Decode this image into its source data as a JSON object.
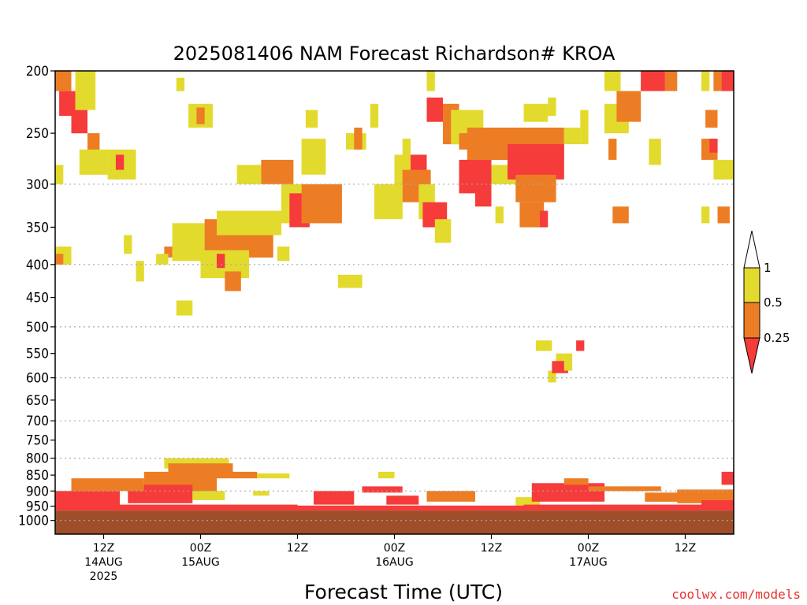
{
  "colors": {
    "ri_lt_025": "#f63b3b",
    "ri_025_05": "#ec7d24",
    "ri_05_1": "#e3da2e",
    "ground": "#9e4f2a",
    "gridline": "#aaaaaa"
  },
  "chart_data": {
    "type": "heatmap",
    "title": "2025081406 NAM Forecast Richardson# KROA",
    "xlabel": "Forecast Time (UTC)",
    "ylabel": "",
    "credit": "coolwx.com/models",
    "y_scale": "log-pressure (reversed)",
    "y_range": [
      1050,
      200
    ],
    "y_ticks": [
      "200",
      "250",
      "300",
      "350",
      "400",
      "450",
      "500",
      "550",
      "600",
      "650",
      "700",
      "750",
      "800",
      "850",
      "900",
      "950",
      "1000"
    ],
    "grid_lines_hPa": [
      300,
      400,
      500,
      600,
      700,
      800,
      900,
      1000
    ],
    "x_range_hours": [
      0,
      84
    ],
    "x_ticks": [
      {
        "hour": 6,
        "lines": [
          "12Z",
          "14AUG",
          "2025"
        ]
      },
      {
        "hour": 18,
        "lines": [
          "00Z",
          "15AUG"
        ]
      },
      {
        "hour": 30,
        "lines": [
          "12Z"
        ]
      },
      {
        "hour": 42,
        "lines": [
          "00Z",
          "16AUG"
        ]
      },
      {
        "hour": 54,
        "lines": [
          "12Z"
        ]
      },
      {
        "hour": 66,
        "lines": [
          "00Z",
          "17AUG"
        ]
      },
      {
        "hour": 78,
        "lines": [
          "12Z"
        ]
      }
    ],
    "colorbar": {
      "labels": [
        "1",
        "0.5",
        "0.25"
      ],
      "bins": [
        {
          "range": "0.5-1",
          "color": "#e3da2e"
        },
        {
          "range": "0.25-0.5",
          "color": "#ec7d24"
        },
        {
          "range": "<0.25",
          "color": "#f63b3b"
        }
      ]
    },
    "ground_level_hPa": 965,
    "cells": [
      {
        "t": [
          0,
          2
        ],
        "p": [
          200,
          215
        ],
        "c": 2
      },
      {
        "t": [
          0.5,
          2.5
        ],
        "p": [
          215,
          235
        ],
        "c": 3
      },
      {
        "t": [
          2,
          4
        ],
        "p": [
          230,
          250
        ],
        "c": 3
      },
      {
        "t": [
          2.5,
          5
        ],
        "p": [
          200,
          230
        ],
        "c": 1
      },
      {
        "t": [
          4,
          5.5
        ],
        "p": [
          250,
          270
        ],
        "c": 2
      },
      {
        "t": [
          3,
          6.5
        ],
        "p": [
          265,
          290
        ],
        "c": 1
      },
      {
        "t": [
          6.5,
          10
        ],
        "p": [
          265,
          295
        ],
        "c": 1
      },
      {
        "t": [
          7.5,
          8.5
        ],
        "p": [
          270,
          285
        ],
        "c": 3
      },
      {
        "t": [
          0,
          1
        ],
        "p": [
          280,
          300
        ],
        "c": 1
      },
      {
        "t": [
          0,
          2
        ],
        "p": [
          375,
          400
        ],
        "c": 1
      },
      {
        "t": [
          0,
          1
        ],
        "p": [
          385,
          400
        ],
        "c": 2
      },
      {
        "t": [
          13.5,
          14.5
        ],
        "p": [
          375,
          390
        ],
        "c": 2
      },
      {
        "t": [
          14.5,
          18.5
        ],
        "p": [
          345,
          395
        ],
        "c": 1
      },
      {
        "t": [
          18.5,
          27
        ],
        "p": [
          340,
          390
        ],
        "c": 2
      },
      {
        "t": [
          20,
          28
        ],
        "p": [
          330,
          360
        ],
        "c": 1
      },
      {
        "t": [
          18,
          24
        ],
        "p": [
          380,
          420
        ],
        "c": 1
      },
      {
        "t": [
          20,
          21
        ],
        "p": [
          385,
          405
        ],
        "c": 3
      },
      {
        "t": [
          21,
          23
        ],
        "p": [
          410,
          440
        ],
        "c": 2
      },
      {
        "t": [
          15,
          17
        ],
        "p": [
          455,
          480
        ],
        "c": 1
      },
      {
        "t": [
          8.5,
          9.5
        ],
        "p": [
          360,
          385
        ],
        "c": 1
      },
      {
        "t": [
          10,
          11
        ],
        "p": [
          395,
          425
        ],
        "c": 1
      },
      {
        "t": [
          12.5,
          14
        ],
        "p": [
          385,
          400
        ],
        "c": 1
      },
      {
        "t": [
          15,
          16
        ],
        "p": [
          205,
          215
        ],
        "c": 1
      },
      {
        "t": [
          16.5,
          19.5
        ],
        "p": [
          225,
          245
        ],
        "c": 1
      },
      {
        "t": [
          17.5,
          18.5
        ],
        "p": [
          228,
          242
        ],
        "c": 2
      },
      {
        "t": [
          22.5,
          25.5
        ],
        "p": [
          280,
          300
        ],
        "c": 1
      },
      {
        "t": [
          25.5,
          29.5
        ],
        "p": [
          275,
          300
        ],
        "c": 2
      },
      {
        "t": [
          27.5,
          29
        ],
        "p": [
          375,
          395
        ],
        "c": 1
      },
      {
        "t": [
          28,
          30.5
        ],
        "p": [
          300,
          345
        ],
        "c": 1
      },
      {
        "t": [
          29,
          31.5
        ],
        "p": [
          310,
          350
        ],
        "c": 3
      },
      {
        "t": [
          30.5,
          35.5
        ],
        "p": [
          300,
          345
        ],
        "c": 2
      },
      {
        "t": [
          30.5,
          33.5
        ],
        "p": [
          255,
          290
        ],
        "c": 1
      },
      {
        "t": [
          35,
          38
        ],
        "p": [
          415,
          435
        ],
        "c": 1
      },
      {
        "t": [
          31,
          32.5
        ],
        "p": [
          230,
          245
        ],
        "c": 1
      },
      {
        "t": [
          36,
          38.5
        ],
        "p": [
          250,
          265
        ],
        "c": 1
      },
      {
        "t": [
          37,
          38
        ],
        "p": [
          245,
          265
        ],
        "c": 2
      },
      {
        "t": [
          39,
          40
        ],
        "p": [
          225,
          245
        ],
        "c": 1
      },
      {
        "t": [
          42,
          43
        ],
        "p": [
          280,
          300
        ],
        "c": 2
      },
      {
        "t": [
          43,
          44
        ],
        "p": [
          255,
          275
        ],
        "c": 1
      },
      {
        "t": [
          39.5,
          43
        ],
        "p": [
          300,
          340
        ],
        "c": 1
      },
      {
        "t": [
          42,
          45
        ],
        "p": [
          270,
          300
        ],
        "c": 1
      },
      {
        "t": [
          44,
          46
        ],
        "p": [
          270,
          290
        ],
        "c": 3
      },
      {
        "t": [
          43,
          46.5
        ],
        "p": [
          285,
          320
        ],
        "c": 2
      },
      {
        "t": [
          45,
          47
        ],
        "p": [
          300,
          340
        ],
        "c": 1
      },
      {
        "t": [
          45.5,
          48.5
        ],
        "p": [
          320,
          350
        ],
        "c": 3
      },
      {
        "t": [
          47,
          49
        ],
        "p": [
          340,
          370
        ],
        "c": 1
      },
      {
        "t": [
          46,
          48
        ],
        "p": [
          220,
          240
        ],
        "c": 3
      },
      {
        "t": [
          48,
          50
        ],
        "p": [
          225,
          260
        ],
        "c": 2
      },
      {
        "t": [
          46,
          47
        ],
        "p": [
          200,
          215
        ],
        "c": 1
      },
      {
        "t": [
          49,
          53
        ],
        "p": [
          230,
          260
        ],
        "c": 1
      },
      {
        "t": [
          50,
          58
        ],
        "p": [
          250,
          265
        ],
        "c": 2
      },
      {
        "t": [
          51,
          63
        ],
        "p": [
          245,
          275
        ],
        "c": 2
      },
      {
        "t": [
          50,
          54
        ],
        "p": [
          275,
          310
        ],
        "c": 3
      },
      {
        "t": [
          54,
          57
        ],
        "p": [
          280,
          300
        ],
        "c": 1
      },
      {
        "t": [
          56,
          63
        ],
        "p": [
          260,
          295
        ],
        "c": 3
      },
      {
        "t": [
          57,
          62
        ],
        "p": [
          290,
          320
        ],
        "c": 2
      },
      {
        "t": [
          57.5,
          60.5
        ],
        "p": [
          320,
          350
        ],
        "c": 2
      },
      {
        "t": [
          60,
          61
        ],
        "p": [
          330,
          350
        ],
        "c": 3
      },
      {
        "t": [
          52,
          54
        ],
        "p": [
          300,
          325
        ],
        "c": 3
      },
      {
        "t": [
          54.5,
          55.5
        ],
        "p": [
          325,
          345
        ],
        "c": 1
      },
      {
        "t": [
          58,
          61
        ],
        "p": [
          225,
          240
        ],
        "c": 1
      },
      {
        "t": [
          61,
          62
        ],
        "p": [
          220,
          235
        ],
        "c": 1
      },
      {
        "t": [
          63,
          65
        ],
        "p": [
          245,
          260
        ],
        "c": 1
      },
      {
        "t": [
          65,
          66
        ],
        "p": [
          230,
          260
        ],
        "c": 1
      },
      {
        "t": [
          68,
          71
        ],
        "p": [
          225,
          250
        ],
        "c": 1
      },
      {
        "t": [
          69.5,
          72.5
        ],
        "p": [
          215,
          240
        ],
        "c": 2
      },
      {
        "t": [
          72.5,
          75.5
        ],
        "p": [
          200,
          215
        ],
        "c": 3
      },
      {
        "t": [
          75.5,
          77
        ],
        "p": [
          200,
          215
        ],
        "c": 2
      },
      {
        "t": [
          73.5,
          75
        ],
        "p": [
          255,
          280
        ],
        "c": 1
      },
      {
        "t": [
          68.5,
          69.5
        ],
        "p": [
          255,
          275
        ],
        "c": 2
      },
      {
        "t": [
          69,
          71
        ],
        "p": [
          325,
          345
        ],
        "c": 2
      },
      {
        "t": [
          80.5,
          82
        ],
        "p": [
          230,
          245
        ],
        "c": 2
      },
      {
        "t": [
          80,
          82
        ],
        "p": [
          255,
          275
        ],
        "c": 2
      },
      {
        "t": [
          81,
          82
        ],
        "p": [
          255,
          268
        ],
        "c": 3
      },
      {
        "t": [
          80,
          81
        ],
        "p": [
          200,
          215
        ],
        "c": 1
      },
      {
        "t": [
          81.5,
          82.5
        ],
        "p": [
          200,
          215
        ],
        "c": 2
      },
      {
        "t": [
          82.5,
          84
        ],
        "p": [
          200,
          215
        ],
        "c": 3
      },
      {
        "t": [
          81.5,
          84
        ],
        "p": [
          275,
          295
        ],
        "c": 1
      },
      {
        "t": [
          82,
          83.5
        ],
        "p": [
          325,
          345
        ],
        "c": 2
      },
      {
        "t": [
          80,
          81
        ],
        "p": [
          325,
          345
        ],
        "c": 1
      },
      {
        "t": [
          68,
          70
        ],
        "p": [
          200,
          215
        ],
        "c": 1
      },
      {
        "t": [
          59.5,
          61.5
        ],
        "p": [
          525,
          545
        ],
        "c": 1
      },
      {
        "t": [
          64.5,
          65.5
        ],
        "p": [
          525,
          545
        ],
        "c": 3
      },
      {
        "t": [
          61,
          62
        ],
        "p": [
          585,
          610
        ],
        "c": 1
      },
      {
        "t": [
          62,
          63
        ],
        "p": [
          550,
          575
        ],
        "c": 1
      },
      {
        "t": [
          61.5,
          63.5
        ],
        "p": [
          565,
          590
        ],
        "c": 3
      },
      {
        "t": [
          63,
          64
        ],
        "p": [
          550,
          585
        ],
        "c": 1
      },
      {
        "t": [
          13.5,
          21.5
        ],
        "p": [
          800,
          830
        ],
        "c": 1
      },
      {
        "t": [
          14,
          22
        ],
        "p": [
          815,
          845
        ],
        "c": 2
      },
      {
        "t": [
          20,
          25
        ],
        "p": [
          840,
          860
        ],
        "c": 2
      },
      {
        "t": [
          11,
          20
        ],
        "p": [
          840,
          905
        ],
        "c": 2
      },
      {
        "t": [
          9,
          17
        ],
        "p": [
          880,
          940
        ],
        "c": 3
      },
      {
        "t": [
          2,
          11
        ],
        "p": [
          860,
          900
        ],
        "c": 2
      },
      {
        "t": [
          0,
          8
        ],
        "p": [
          900,
          950
        ],
        "c": 3
      },
      {
        "t": [
          17,
          21
        ],
        "p": [
          900,
          930
        ],
        "c": 1
      },
      {
        "t": [
          25,
          29
        ],
        "p": [
          845,
          860
        ],
        "c": 1
      },
      {
        "t": [
          24.5,
          26.5
        ],
        "p": [
          900,
          915
        ],
        "c": 1
      },
      {
        "t": [
          32,
          37
        ],
        "p": [
          900,
          945
        ],
        "c": 3
      },
      {
        "t": [
          38,
          43
        ],
        "p": [
          885,
          905
        ],
        "c": 3
      },
      {
        "t": [
          40,
          42
        ],
        "p": [
          840,
          860
        ],
        "c": 1
      },
      {
        "t": [
          41,
          45
        ],
        "p": [
          915,
          945
        ],
        "c": 3
      },
      {
        "t": [
          46,
          52
        ],
        "p": [
          900,
          935
        ],
        "c": 2
      },
      {
        "t": [
          57,
          60
        ],
        "p": [
          920,
          950
        ],
        "c": 1
      },
      {
        "t": [
          59,
          68
        ],
        "p": [
          875,
          935
        ],
        "c": 3
      },
      {
        "t": [
          63,
          66
        ],
        "p": [
          860,
          880
        ],
        "c": 2
      },
      {
        "t": [
          66,
          75
        ],
        "p": [
          885,
          900
        ],
        "c": 2
      },
      {
        "t": [
          73,
          79
        ],
        "p": [
          905,
          935
        ],
        "c": 2
      },
      {
        "t": [
          77,
          84
        ],
        "p": [
          895,
          940
        ],
        "c": 2
      },
      {
        "t": [
          80,
          84
        ],
        "p": [
          930,
          960
        ],
        "c": 3
      },
      {
        "t": [
          82.5,
          84
        ],
        "p": [
          840,
          880
        ],
        "c": 3
      },
      {
        "t": [
          0,
          30
        ],
        "p": [
          945,
          965
        ],
        "c": 3
      },
      {
        "t": [
          30,
          58
        ],
        "p": [
          948,
          965
        ],
        "c": 3
      },
      {
        "t": [
          58,
          84
        ],
        "p": [
          945,
          965
        ],
        "c": 3
      }
    ]
  }
}
